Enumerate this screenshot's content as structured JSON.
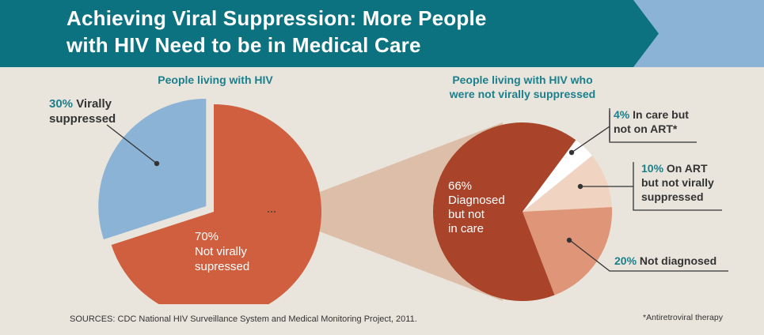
{
  "title": {
    "line1": "Achieving Viral Suppression: More People",
    "line2": "with HIV Need to be in Medical Care"
  },
  "colors": {
    "header_teal": "#0d7280",
    "header_light_blue": "#8bb3d6",
    "background": "#e9e5dc",
    "label_teal": "#1b7f8c",
    "suppressed_blue": "#8bb3d6",
    "not_suppressed_orange": "#cf5f3f",
    "diagnosed_not_in_care": "#a9442b",
    "in_care_not_on_art": "#ffffff",
    "on_art_not_suppressed": "#f1d3c2",
    "not_diagnosed": "#df9577",
    "connector_band": "#dcbea9"
  },
  "chart_data": [
    {
      "type": "pie",
      "title": "People living with HIV",
      "slices": [
        {
          "key": "not_suppressed",
          "pct": "70%",
          "value": 70,
          "label_lines": [
            "Not virally",
            "supressed"
          ]
        },
        {
          "key": "suppressed",
          "pct": "30%",
          "value": 30,
          "label_lines": [
            "Virally",
            "suppressed"
          ]
        }
      ]
    },
    {
      "type": "pie",
      "title_lines": [
        "People living with HIV who",
        "were not virally suppressed"
      ],
      "slices": [
        {
          "key": "diagnosed_not_in_care",
          "pct": "66%",
          "value": 66,
          "label_lines": [
            "Diagnosed",
            "but not",
            "in care"
          ]
        },
        {
          "key": "not_diagnosed",
          "pct": "20%",
          "value": 20,
          "label_lines": [
            "Not diagnosed"
          ]
        },
        {
          "key": "on_art_not_suppressed",
          "pct": "10%",
          "value": 10,
          "label_lines": [
            "On ART",
            "but not virally",
            "suppressed"
          ]
        },
        {
          "key": "in_care_not_on_art",
          "pct": "4%",
          "value": 4,
          "label_lines": [
            "In care but",
            "not on ART*"
          ]
        }
      ]
    }
  ],
  "sources": "SOURCES: CDC National HIV Surveillance System and Medical Monitoring Project, 2011.",
  "footnote": "*Antiretroviral therapy"
}
